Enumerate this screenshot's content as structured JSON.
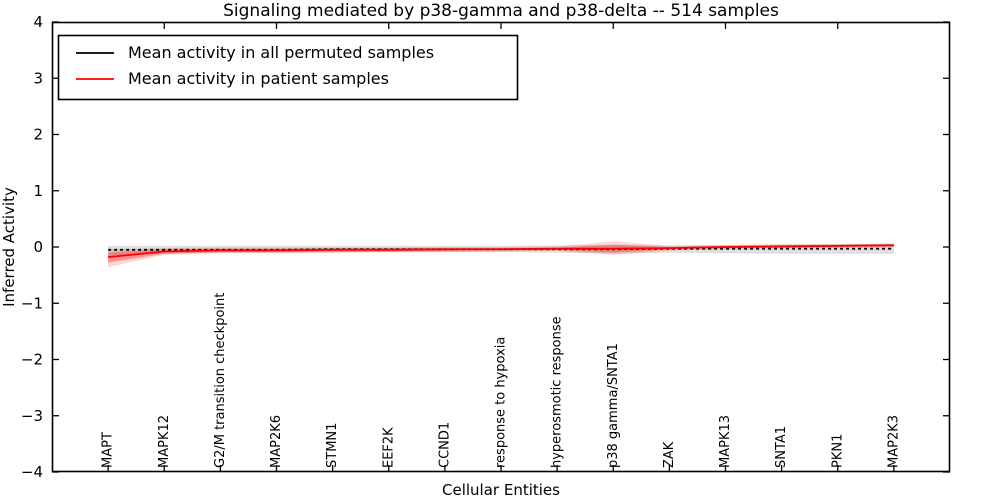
{
  "title": "Signaling mediated by p38-gamma and p38-delta -- 514 samples",
  "legend": {
    "items": [
      {
        "label": "Mean activity in all permuted samples",
        "color": "#000000",
        "line_style": "solid"
      },
      {
        "label": "Mean activity in patient samples",
        "color": "#ff0000",
        "line_style": "solid"
      }
    ]
  },
  "chart_data": {
    "type": "line",
    "title": "Signaling mediated by p38-gamma and p38-delta -- 514 samples",
    "xlabel": "Cellular Entities",
    "ylabel": "Inferred Activity",
    "ylim": [
      -4,
      4
    ],
    "yticks": [
      4,
      3,
      2,
      1,
      0,
      -1,
      -2,
      -3,
      -4
    ],
    "grid": false,
    "legend_position": "upper left",
    "tick_direction": "in",
    "x_label_rotation": 90,
    "categories": [
      "MAPT",
      "MAPK12",
      "G2/M transition checkpoint",
      "MAP2K6",
      "STMN1",
      "EEF2K",
      "CCND1",
      "response to hypoxia",
      "hyperosmotic response",
      "p38 gamma/SNTA1",
      "ZAK",
      "MAPK13",
      "SNTA1",
      "PKN1",
      "MAP2K3"
    ],
    "top_tick_indices": [
      1,
      3,
      5,
      7,
      9,
      11,
      13
    ],
    "series": [
      {
        "name": "Mean activity in all permuted samples",
        "color": "#000000",
        "style": "dashed",
        "width": 1.8,
        "values": [
          -0.05,
          -0.05,
          -0.05,
          -0.05,
          -0.04,
          -0.04,
          -0.04,
          -0.04,
          -0.04,
          -0.04,
          -0.03,
          -0.03,
          -0.03,
          -0.03,
          -0.03
        ]
      },
      {
        "name": "Mean activity in patient samples",
        "color": "#ff0000",
        "style": "solid",
        "width": 1.8,
        "values": [
          -0.18,
          -0.08,
          -0.06,
          -0.06,
          -0.05,
          -0.05,
          -0.04,
          -0.04,
          -0.03,
          -0.03,
          -0.02,
          0.0,
          0.01,
          0.02,
          0.03
        ]
      }
    ],
    "bands": [
      {
        "name": "permuted-samples-range",
        "color": "rgba(0,0,0,0.13)",
        "upper": [
          0.02,
          0.02,
          0.02,
          0.02,
          0.02,
          0.02,
          0.02,
          0.02,
          0.03,
          0.04,
          0.03,
          0.04,
          0.05,
          0.05,
          0.06
        ],
        "lower": [
          -0.18,
          -0.11,
          -0.1,
          -0.1,
          -0.1,
          -0.09,
          -0.09,
          -0.09,
          -0.1,
          -0.12,
          -0.1,
          -0.11,
          -0.12,
          -0.12,
          -0.12
        ]
      },
      {
        "name": "patient-samples-range-outer",
        "color": "rgba(255,0,0,0.16)",
        "upper": [
          -0.04,
          -0.02,
          -0.01,
          -0.01,
          -0.01,
          -0.01,
          0.0,
          0.0,
          0.01,
          0.1,
          0.02,
          0.03,
          0.04,
          0.05,
          0.06
        ],
        "lower": [
          -0.36,
          -0.14,
          -0.11,
          -0.11,
          -0.1,
          -0.09,
          -0.09,
          -0.08,
          -0.07,
          -0.14,
          -0.06,
          -0.03,
          -0.02,
          -0.01,
          0.0
        ]
      },
      {
        "name": "patient-samples-range-inner",
        "color": "rgba(255,0,0,0.30)",
        "upper": [
          -0.1,
          -0.04,
          -0.03,
          -0.03,
          -0.02,
          -0.02,
          -0.02,
          -0.02,
          -0.01,
          0.04,
          0.0,
          0.02,
          0.03,
          0.04,
          0.05
        ],
        "lower": [
          -0.28,
          -0.12,
          -0.09,
          -0.09,
          -0.08,
          -0.08,
          -0.07,
          -0.06,
          -0.05,
          -0.1,
          -0.04,
          -0.02,
          -0.01,
          0.0,
          0.01
        ]
      }
    ]
  }
}
